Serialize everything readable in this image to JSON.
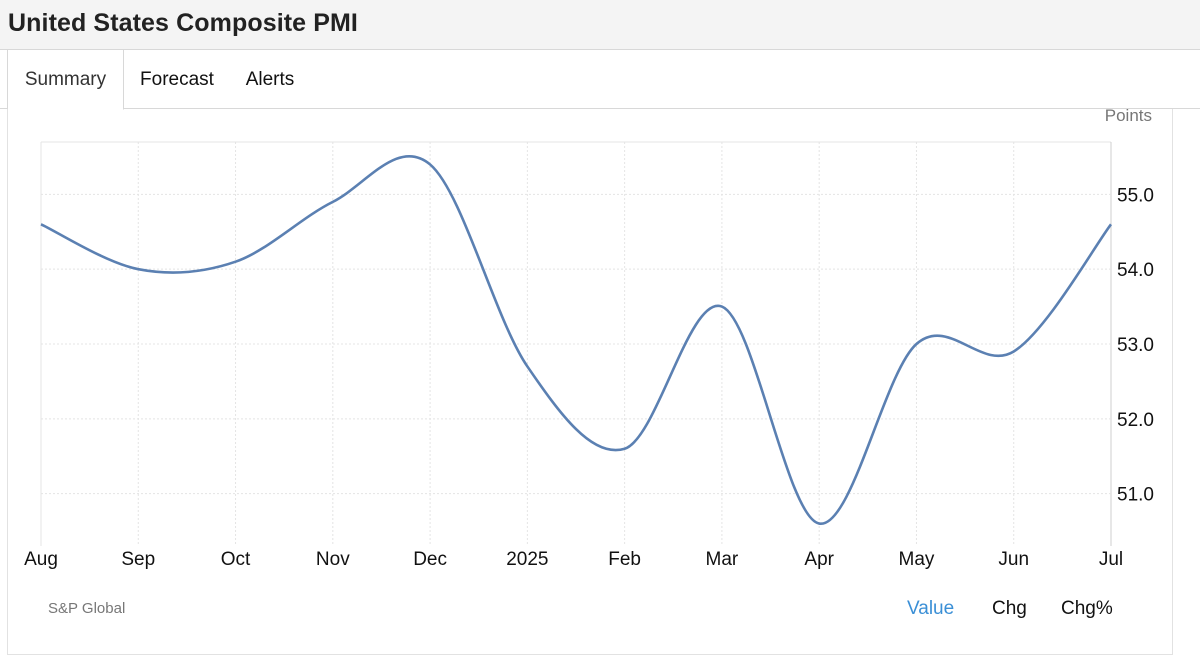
{
  "header": {
    "title": "United States Composite PMI"
  },
  "tabs": [
    {
      "label": "Summary",
      "active": true
    },
    {
      "label": "Forecast",
      "active": false
    },
    {
      "label": "Alerts",
      "active": false
    }
  ],
  "chart_data": {
    "type": "line",
    "title": "",
    "ylabel": "Points",
    "xlabel": "",
    "categories": [
      "Aug",
      "Sep",
      "Oct",
      "Nov",
      "Dec",
      "2025",
      "Feb",
      "Mar",
      "Apr",
      "May",
      "Jun",
      "Jul"
    ],
    "series": [
      {
        "values": [
          54.6,
          54.0,
          54.1,
          54.9,
          55.4,
          52.7,
          51.6,
          53.5,
          50.6,
          53.0,
          52.9,
          54.6
        ]
      }
    ],
    "y_ticks": [
      "51.0",
      "52.0",
      "53.0",
      "54.0",
      "55.0"
    ],
    "ylim": [
      50.3,
      55.7
    ],
    "grid": true,
    "line_color": "#5b80b2",
    "y_axis_side": "right"
  },
  "footer": {
    "source": "S&P Global",
    "buttons": [
      {
        "label": "Value",
        "active": true
      },
      {
        "label": "Chg",
        "active": false
      },
      {
        "label": "Chg%",
        "active": false
      }
    ]
  },
  "colors": {
    "active_button": "#3a8fd6",
    "grid": "#e4e4e4",
    "line": "#5b80b2"
  }
}
